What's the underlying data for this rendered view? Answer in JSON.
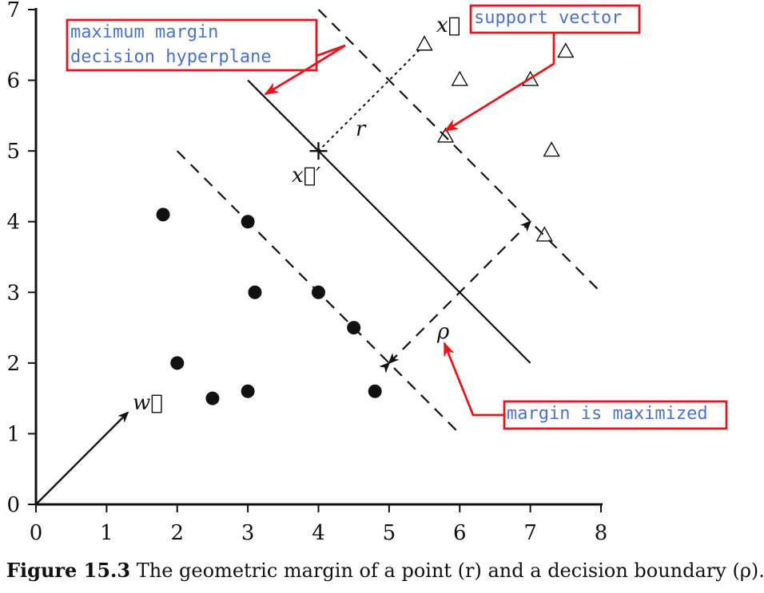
{
  "chart_data": {
    "type": "scatter",
    "x_ticks": [
      "0",
      "1",
      "2",
      "3",
      "4",
      "5",
      "6",
      "7",
      "8"
    ],
    "y_ticks": [
      "0",
      "1",
      "2",
      "3",
      "4",
      "5",
      "6",
      "7"
    ],
    "xlim": [
      0,
      8
    ],
    "ylim": [
      0,
      7
    ],
    "grid": false,
    "series": [
      {
        "marker": "filled-circle",
        "points": [
          {
            "x": 1.8,
            "y": 4.1
          },
          {
            "x": 2.0,
            "y": 2.0
          },
          {
            "x": 2.5,
            "y": 1.5
          },
          {
            "x": 3.0,
            "y": 4.0
          },
          {
            "x": 3.0,
            "y": 1.6
          },
          {
            "x": 3.1,
            "y": 3.0
          },
          {
            "x": 4.0,
            "y": 3.0
          },
          {
            "x": 4.5,
            "y": 2.5
          },
          {
            "x": 4.8,
            "y": 1.6
          }
        ]
      },
      {
        "marker": "open-triangle",
        "points": [
          {
            "x": 5.5,
            "y": 6.5
          },
          {
            "x": 5.8,
            "y": 5.2
          },
          {
            "x": 6.0,
            "y": 6.0
          },
          {
            "x": 7.0,
            "y": 6.0
          },
          {
            "x": 7.2,
            "y": 3.8
          },
          {
            "x": 7.3,
            "y": 5.0
          },
          {
            "x": 7.5,
            "y": 6.4
          }
        ]
      }
    ],
    "lines": [
      {
        "style": "solid",
        "from": {
          "x": 3.0,
          "y": 6.0
        },
        "to": {
          "x": 7.0,
          "y": 2.0
        }
      },
      {
        "style": "dashed",
        "from": {
          "x": 2.0,
          "y": 5.0
        },
        "to": {
          "x": 6.0,
          "y": 1.0
        }
      },
      {
        "style": "dashed",
        "from": {
          "x": 4.0,
          "y": 7.0
        },
        "to": {
          "x": 8.0,
          "y": 3.0
        }
      }
    ],
    "labels": {
      "x_vec": "x⃗",
      "x_prime": "x⃗′",
      "r": "r",
      "w_vec": "w⃗",
      "rho": "ρ"
    },
    "annotations": {
      "distance_r": {
        "from": {
          "x": 4.0,
          "y": 5.0
        },
        "to": {
          "x": 5.5,
          "y": 6.5
        }
      },
      "margin_arrow": {
        "from": {
          "x": 5.0,
          "y": 2.0
        },
        "to": {
          "x": 7.0,
          "y": 4.0
        }
      },
      "normal_vector": {
        "from": {
          "x": 0.0,
          "y": 0.0
        },
        "to": {
          "x": 1.3,
          "y": 1.3
        }
      },
      "cross_point": {
        "x": 4.0,
        "y": 5.0
      }
    },
    "callouts": [
      {
        "lines": [
          "maximum margin",
          "decision hyperplane"
        ]
      },
      {
        "lines": [
          "support vector"
        ]
      },
      {
        "lines": [
          "margin is maximized"
        ]
      }
    ],
    "callout_color": "#e8161c",
    "callout_text_color": "#4a74c9"
  },
  "caption": {
    "figure_number": "Figure 15.3",
    "text": "The geometric margin of a point (r) and a decision boundary (ρ)."
  }
}
